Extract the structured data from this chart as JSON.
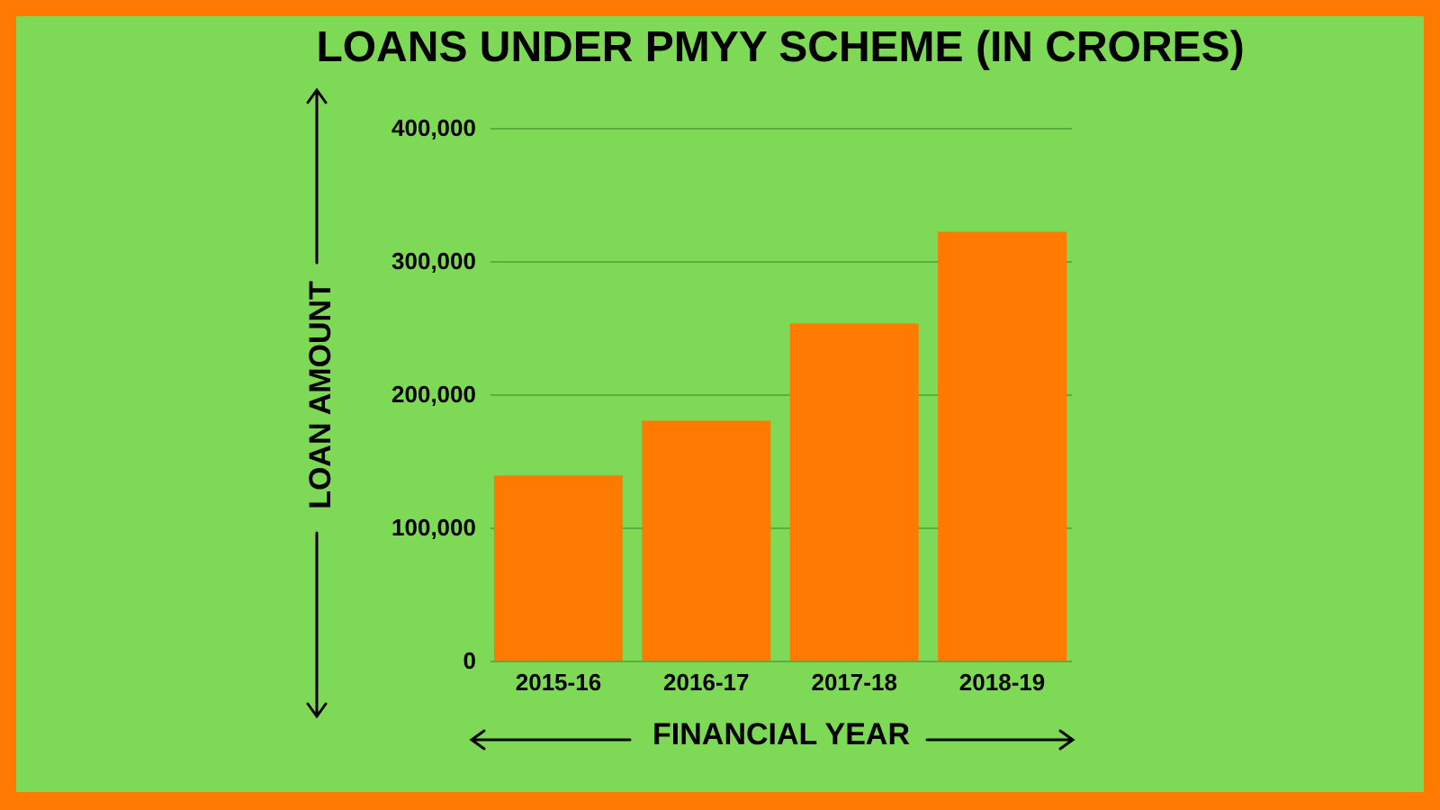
{
  "chart_data": {
    "type": "bar",
    "title": "LOANS UNDER PMYY SCHEME (IN CRORES)",
    "xlabel": "FINANCIAL YEAR",
    "ylabel": "LOAN AMOUNT",
    "categories": [
      "2015-16",
      "2016-17",
      "2017-18",
      "2018-19"
    ],
    "values": [
      139000,
      180000,
      253000,
      322000
    ],
    "color": "#ff7a00",
    "ylim": [
      0,
      400000
    ],
    "yticks": [
      {
        "value": 0,
        "label": "0"
      },
      {
        "value": 100000,
        "label": "100,000"
      },
      {
        "value": 200000,
        "label": "200,000"
      },
      {
        "value": 300000,
        "label": "300,000"
      },
      {
        "value": 400000,
        "label": "400,000"
      }
    ],
    "grid": "y"
  }
}
